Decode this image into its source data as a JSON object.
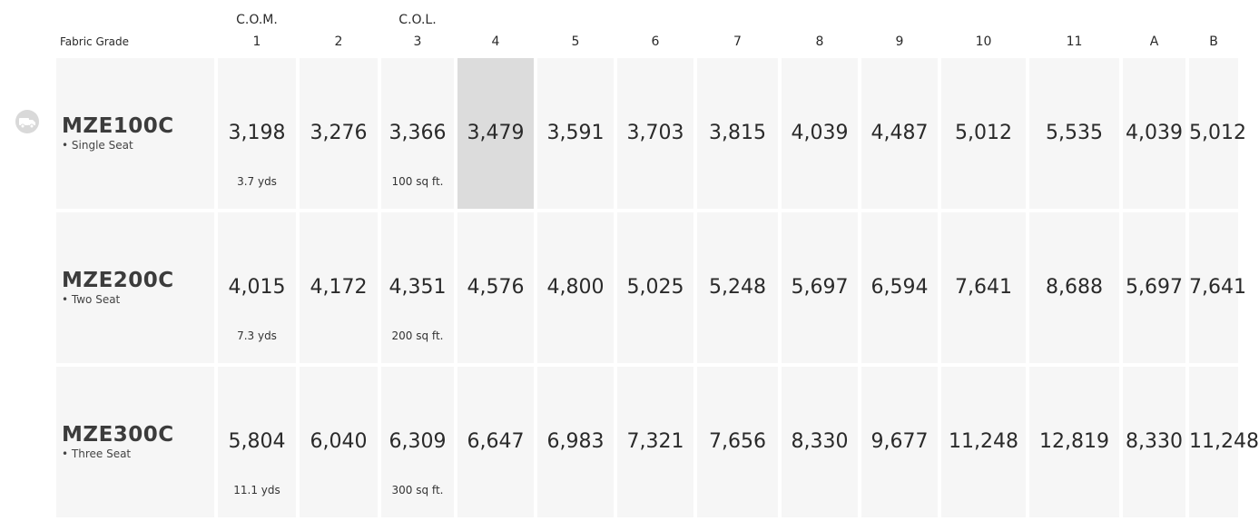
{
  "header": {
    "row_label": "Fabric Grade",
    "grades": [
      "1",
      "2",
      "3",
      "4",
      "5",
      "6",
      "7",
      "8",
      "9",
      "10",
      "11",
      "A",
      "B"
    ],
    "top_labels": [
      "C.O.M.",
      "",
      "C.O.L.",
      "",
      "",
      "",
      "",
      "",
      "",
      "",
      "",
      "",
      ""
    ]
  },
  "icon": "delivery-truck-icon",
  "highlight": {
    "row": 0,
    "grade": "4",
    "color": "#dcdcdc"
  },
  "rows": [
    {
      "model": "MZE100C",
      "desc": "• Single Seat",
      "prices": [
        "3,198",
        "3,276",
        "3,366",
        "3,479",
        "3,591",
        "3,703",
        "3,815",
        "4,039",
        "4,487",
        "5,012",
        "5,535",
        "4,039",
        "5,012"
      ],
      "com_yardage": "3.7 yds",
      "col_area": "100 sq ft."
    },
    {
      "model": "MZE200C",
      "desc": "• Two Seat",
      "prices": [
        "4,015",
        "4,172",
        "4,351",
        "4,576",
        "4,800",
        "5,025",
        "5,248",
        "5,697",
        "6,594",
        "7,641",
        "8,688",
        "5,697",
        "7,641"
      ],
      "com_yardage": "7.3 yds",
      "col_area": "200 sq ft."
    },
    {
      "model": "MZE300C",
      "desc": "• Three Seat",
      "prices": [
        "5,804",
        "6,040",
        "6,309",
        "6,647",
        "6,983",
        "7,321",
        "7,656",
        "8,330",
        "9,677",
        "11,248",
        "12,819",
        "8,330",
        "11,248"
      ],
      "com_yardage": "11.1 yds",
      "col_area": "300 sq ft."
    }
  ],
  "colors": {
    "cell_bg": "#f6f6f6",
    "highlight_bg": "#dcdcdc",
    "text": "#2a2a2a"
  }
}
